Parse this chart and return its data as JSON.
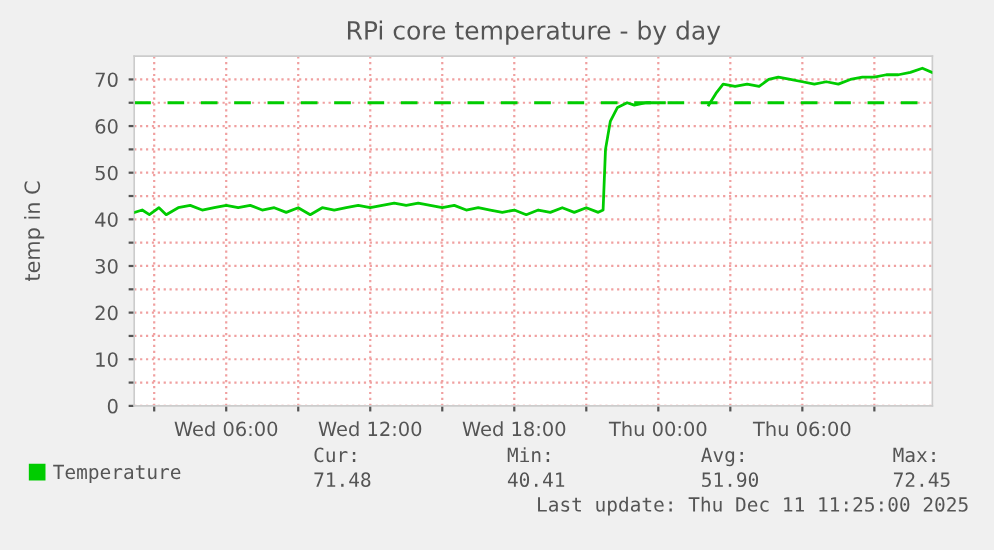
{
  "chart_data": {
    "type": "line",
    "title": "RPi core temperature - by day",
    "ylabel": "temp in C",
    "xlim": [
      "2025-12-10T02:10",
      "2025-12-11T11:25"
    ],
    "xticks": [
      {
        "value": "2025-12-10T03:00",
        "label": null
      },
      {
        "value": "2025-12-10T06:00",
        "label": "Wed 06:00"
      },
      {
        "value": "2025-12-10T09:00",
        "label": null
      },
      {
        "value": "2025-12-10T12:00",
        "label": "Wed 12:00"
      },
      {
        "value": "2025-12-10T15:00",
        "label": null
      },
      {
        "value": "2025-12-10T18:00",
        "label": "Wed 18:00"
      },
      {
        "value": "2025-12-10T21:00",
        "label": null
      },
      {
        "value": "2025-12-11T00:00",
        "label": "Thu 00:00"
      },
      {
        "value": "2025-12-11T03:00",
        "label": null
      },
      {
        "value": "2025-12-11T06:00",
        "label": "Thu 06:00"
      },
      {
        "value": "2025-12-11T09:00",
        "label": null
      }
    ],
    "ylim": [
      0,
      75
    ],
    "yticks": [
      0,
      {
        "value": 5,
        "label": null
      },
      10,
      {
        "value": 15,
        "label": null
      },
      20,
      {
        "value": 25,
        "label": null
      },
      30,
      {
        "value": 35,
        "label": null
      },
      40,
      {
        "value": 45,
        "label": null
      },
      50,
      {
        "value": 55,
        "label": null
      },
      60,
      {
        "value": 65,
        "label": null
      },
      70
    ],
    "grid": true,
    "legend": "bottom",
    "marker": "none",
    "line_style": "solid",
    "x": [
      "2025-12-10T02:12",
      "2025-12-10T02:30",
      "2025-12-10T02:48",
      "2025-12-10T03:12",
      "2025-12-10T03:30",
      "2025-12-10T04:00",
      "2025-12-10T04:30",
      "2025-12-10T05:00",
      "2025-12-10T05:30",
      "2025-12-10T06:00",
      "2025-12-10T06:30",
      "2025-12-10T07:00",
      "2025-12-10T07:30",
      "2025-12-10T08:00",
      "2025-12-10T08:30",
      "2025-12-10T09:00",
      "2025-12-10T09:30",
      "2025-12-10T10:00",
      "2025-12-10T10:30",
      "2025-12-10T11:00",
      "2025-12-10T11:30",
      "2025-12-10T12:00",
      "2025-12-10T12:30",
      "2025-12-10T13:00",
      "2025-12-10T13:30",
      "2025-12-10T14:00",
      "2025-12-10T14:30",
      "2025-12-10T15:00",
      "2025-12-10T15:30",
      "2025-12-10T16:00",
      "2025-12-10T16:30",
      "2025-12-10T17:00",
      "2025-12-10T17:30",
      "2025-12-10T18:00",
      "2025-12-10T18:30",
      "2025-12-10T19:00",
      "2025-12-10T19:30",
      "2025-12-10T20:00",
      "2025-12-10T20:30",
      "2025-12-10T21:00",
      "2025-12-10T21:30",
      "2025-12-10T21:42",
      "2025-12-10T21:48",
      "2025-12-10T22:00",
      "2025-12-10T22:18",
      "2025-12-10T22:42",
      "2025-12-10T23:00",
      "2025-12-10T23:30",
      "2025-12-11T00:00",
      "2025-12-11T00:15",
      "2025-12-11T01:00",
      "2025-12-11T02:06",
      "2025-12-11T02:24",
      "2025-12-11T02:42",
      "2025-12-11T03:12",
      "2025-12-11T03:42",
      "2025-12-11T04:12",
      "2025-12-11T04:36",
      "2025-12-11T05:00",
      "2025-12-11T05:30",
      "2025-12-11T06:00",
      "2025-12-11T06:30",
      "2025-12-11T07:00",
      "2025-12-11T07:30",
      "2025-12-11T08:00",
      "2025-12-11T08:30",
      "2025-12-11T09:00",
      "2025-12-11T09:30",
      "2025-12-11T10:00",
      "2025-12-11T10:30",
      "2025-12-11T11:00",
      "2025-12-11T11:24"
    ],
    "series": [
      {
        "name": "Temperature",
        "color": "#00cc00",
        "values": [
          41.5,
          42,
          41,
          42.5,
          41,
          42.5,
          43,
          42,
          42.5,
          43,
          42.5,
          43,
          42,
          42.5,
          41.5,
          42.5,
          41,
          42.5,
          42,
          42.5,
          43,
          42.5,
          43,
          43.5,
          43,
          43.5,
          43,
          42.5,
          43,
          42,
          42.5,
          42,
          41.5,
          42,
          41,
          42,
          41.5,
          42.5,
          41.5,
          42.5,
          41.5,
          42,
          55,
          61,
          64,
          65,
          64.5,
          65,
          65,
          65,
          null,
          64.5,
          67,
          69,
          68.5,
          69,
          68.5,
          70,
          70.5,
          70,
          69.5,
          69,
          69.5,
          69,
          70,
          70.5,
          70.5,
          71,
          71,
          71.5,
          72.4,
          71.5
        ]
      }
    ],
    "ref_lines": [
      {
        "axis": "y",
        "value": 65,
        "label": null,
        "color": "#00cc00",
        "line_style": "dashed"
      }
    ],
    "annotations": [
      "Cur:",
      "Min:",
      "Avg:",
      "Max:",
      "71.48",
      "40.41",
      "51.90",
      "72.45",
      "Last update: Thu Dec 11 11:25:00 2025"
    ]
  }
}
